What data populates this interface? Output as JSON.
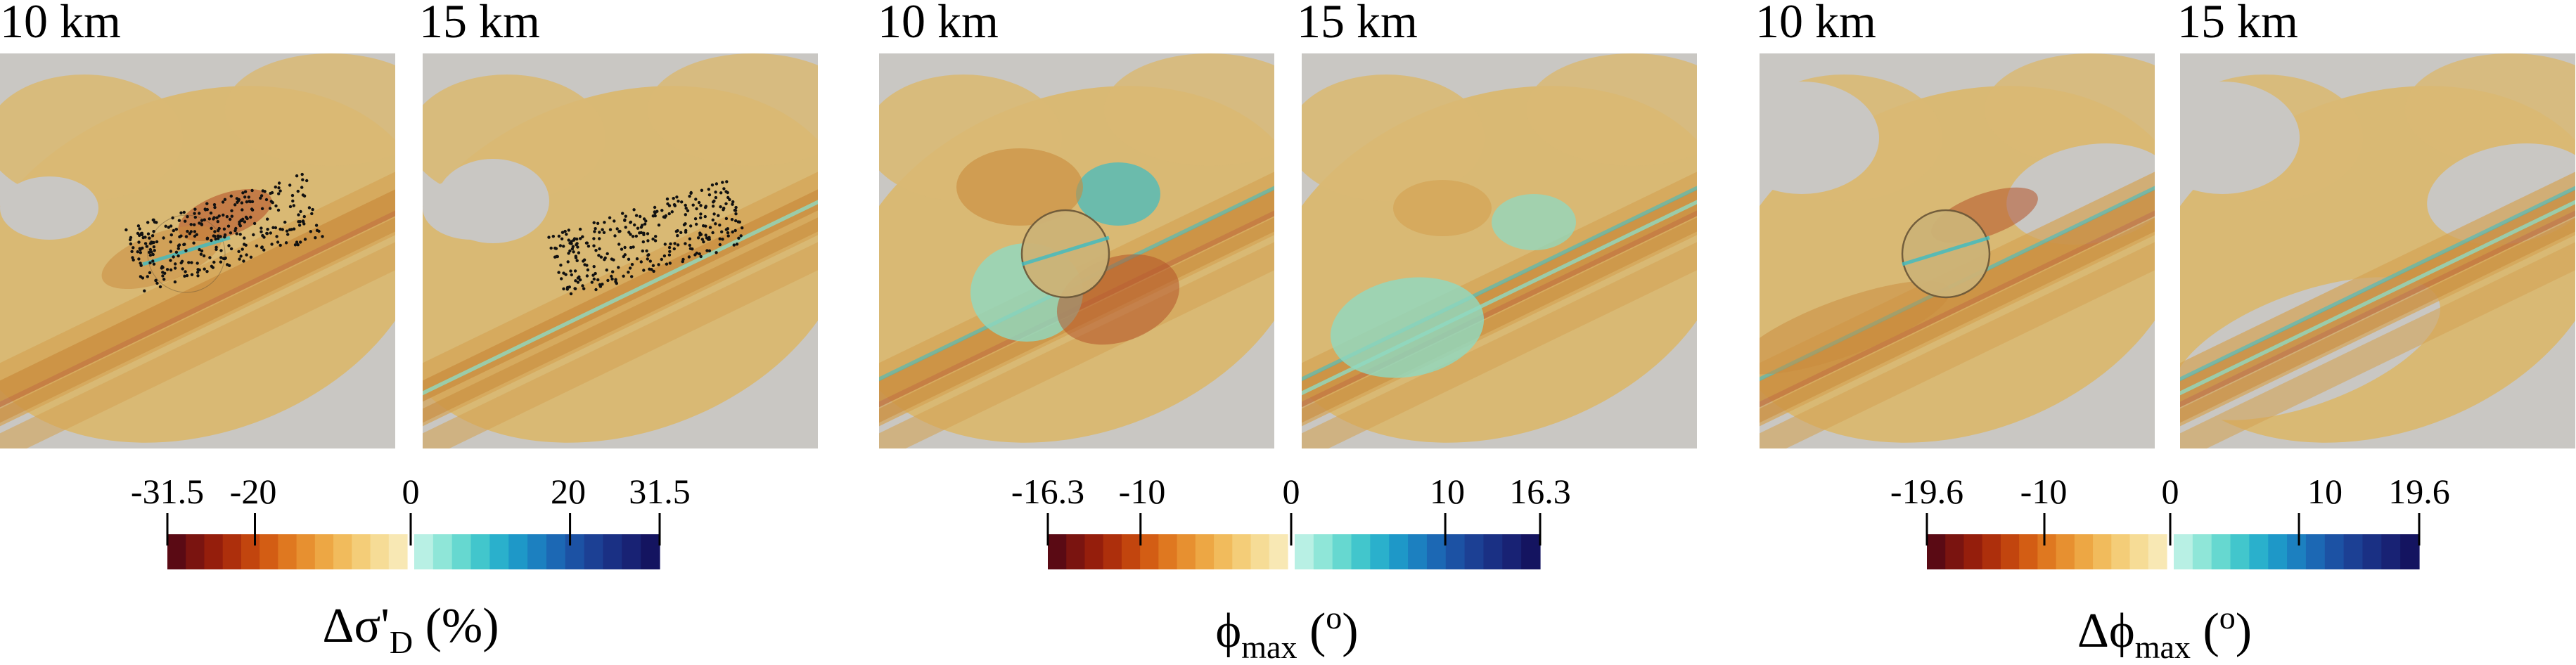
{
  "groups": [
    {
      "id": "stress-drop",
      "panels": [
        {
          "label": "10 km",
          "features": [
            "cavity-ghost",
            "seismicity"
          ]
        },
        {
          "label": "15 km",
          "features": [
            "seismicity"
          ]
        }
      ],
      "colorbar": {
        "tick_labels": [
          "-31.5",
          "-20",
          "0",
          "20",
          "31.5"
        ],
        "tick_values": [
          -31.5,
          -20,
          0,
          20,
          31.5
        ],
        "range": [
          -31.5,
          31.5
        ]
      },
      "quantity": {
        "symbol": "Δσ'",
        "sub": "D",
        "sup": "",
        "unit": "(%)"
      }
    },
    {
      "id": "phi-max",
      "panels": [
        {
          "label": "10 km",
          "features": [
            "cavity"
          ]
        },
        {
          "label": "15 km",
          "features": []
        }
      ],
      "colorbar": {
        "tick_labels": [
          "-16.3",
          "-10",
          "0",
          "10",
          "16.3"
        ],
        "tick_values": [
          -16.3,
          -10,
          0,
          10,
          16.3
        ],
        "range": [
          -16.3,
          16.3
        ]
      },
      "quantity": {
        "symbol": "ϕ",
        "sub": "max",
        "sup": "o",
        "unit_open": "(",
        "unit_close": ")"
      }
    },
    {
      "id": "delta-phi-max",
      "panels": [
        {
          "label": "10 km",
          "features": [
            "cavity"
          ]
        },
        {
          "label": "15 km",
          "features": []
        }
      ],
      "colorbar": {
        "tick_labels": [
          "-19.6",
          "-10",
          "0",
          "10",
          "19.6"
        ],
        "tick_values": [
          -19.6,
          -10,
          0,
          10,
          19.6
        ],
        "range": [
          -19.6,
          19.6
        ]
      },
      "quantity": {
        "symbol": "Δϕ",
        "sub": "max",
        "sup": "o",
        "unit_open": "(",
        "unit_close": ")"
      }
    }
  ],
  "colormap": {
    "negative": [
      "#5a0a14",
      "#7a1410",
      "#951e0c",
      "#ad2f0c",
      "#c2450e",
      "#d35d14",
      "#df7820",
      "#e79030",
      "#eda744",
      "#f1bb5c",
      "#f4cd78",
      "#f6dc96",
      "#f8e8b4"
    ],
    "positive": [
      "#b8f0e4",
      "#8fe6d8",
      "#66d8d0",
      "#42c6cc",
      "#2ab0cc",
      "#1e98c8",
      "#1c80c0",
      "#1c68b4",
      "#1c52a4",
      "#1c4094",
      "#1a3084",
      "#182274",
      "#141460"
    ],
    "background_gray": "#c9c7c3",
    "ochre": "#d9b974"
  }
}
